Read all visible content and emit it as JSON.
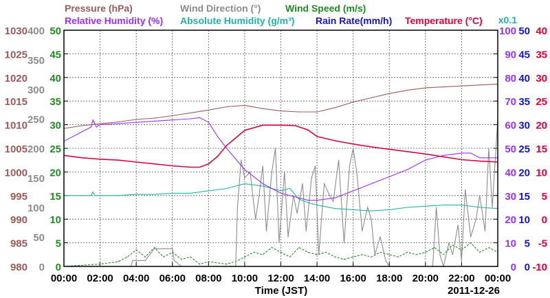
{
  "chart_data": {
    "type": "line",
    "titles": [
      {
        "text": "Pressure (hPa)",
        "color": "#9b5a5a",
        "row": 1
      },
      {
        "text": "Wind Direction (°)",
        "color": "#8c8c8c",
        "row": 1
      },
      {
        "text": "Wind Speed (m/s)",
        "color": "#1f8c1f",
        "row": 1
      },
      {
        "text": "Relative Humidity (%)",
        "color": "#9b30ff",
        "row": 2
      },
      {
        "text": "Absolute Humidity (g/m³)",
        "color": "#20b2aa",
        "row": 2
      },
      {
        "text": "Rain Rate(mm/h)",
        "color": "#1414c8",
        "row": 2
      },
      {
        "text": "Temperature (°C)",
        "color": "#e0003c",
        "row": 2
      }
    ],
    "note_x01": "x0.1",
    "xlabel": "Time (JST)",
    "date_label": "2011-12-26",
    "x_ticks": [
      "00:00",
      "02:00",
      "04:00",
      "06:00",
      "08:00",
      "10:00",
      "12:00",
      "14:00",
      "16:00",
      "18:00",
      "20:00",
      "22:00",
      "00:00"
    ],
    "x_range_hours": [
      0,
      24
    ],
    "grid": true,
    "axes": {
      "pressure": {
        "color": "#9b5a5a",
        "min": 980,
        "max": 1030,
        "ticks": [
          980,
          985,
          990,
          995,
          1000,
          1005,
          1010,
          1015,
          1020,
          1025,
          1030
        ],
        "side": "left"
      },
      "wind_direction": {
        "color": "#8c8c8c",
        "min": 0,
        "max": 400,
        "ticks": [
          0,
          50,
          100,
          150,
          200,
          250,
          300,
          350,
          400
        ],
        "side": "left"
      },
      "wind_speed": {
        "color": "#1f8c1f",
        "min": 0,
        "max": 50,
        "ticks": [
          0,
          5,
          10,
          15,
          20,
          25,
          30,
          35,
          40,
          45,
          50
        ],
        "side": "left"
      },
      "relative_humidity": {
        "color": "#9b30ff",
        "min": 0,
        "max": 100,
        "ticks": [
          0,
          10,
          20,
          30,
          40,
          50,
          60,
          70,
          80,
          90,
          100
        ],
        "side": "right"
      },
      "rain_rate": {
        "color": "#1414c8",
        "min": 0,
        "max": 50,
        "ticks": [
          0,
          5,
          10,
          15,
          20,
          25,
          30,
          35,
          40,
          45,
          50
        ],
        "side": "right"
      },
      "temperature": {
        "color": "#e0003c",
        "min": -10,
        "max": 40,
        "ticks": [
          -10,
          -5,
          0,
          5,
          10,
          15,
          20,
          25,
          30,
          35,
          40
        ],
        "side": "right"
      }
    },
    "series": [
      {
        "name": "Pressure (hPa)",
        "axis": "pressure",
        "color": "#9b5a5a",
        "x": [
          0,
          1,
          2,
          3,
          4,
          5,
          6,
          7,
          8,
          9,
          10,
          11,
          12,
          13,
          14,
          15,
          16,
          17,
          18,
          19,
          20,
          21,
          22,
          23,
          24
        ],
        "y": [
          1009.2,
          1009.8,
          1010.2,
          1010.6,
          1011.1,
          1011.4,
          1011.9,
          1012.5,
          1013.1,
          1013.8,
          1014.1,
          1013.4,
          1012.9,
          1012.7,
          1012.7,
          1013.6,
          1014.8,
          1015.7,
          1016.6,
          1017.3,
          1017.8,
          1018.0,
          1018.2,
          1018.4,
          1018.6
        ]
      },
      {
        "name": "Relative Humidity (%)",
        "axis": "relative_humidity",
        "color": "#9b30ff",
        "x": [
          0,
          0.5,
          1,
          1.5,
          1.6,
          1.8,
          2,
          3,
          4,
          5,
          6,
          7,
          7.5,
          8,
          8.5,
          9,
          10,
          11,
          12,
          13,
          13.5,
          14,
          15,
          16,
          17,
          18,
          19,
          20,
          21,
          22,
          22.5,
          23,
          24
        ],
        "y": [
          53,
          55,
          57,
          59,
          62,
          59,
          60,
          60.5,
          61,
          61.5,
          62,
          62.5,
          63,
          61,
          55,
          50,
          41,
          35,
          31,
          29,
          28,
          28,
          29,
          32,
          35,
          38,
          41,
          45,
          47,
          48,
          48,
          46,
          46
        ]
      },
      {
        "name": "Absolute Humidity (g/m³)",
        "axis": "relative_humidity",
        "color": "#20b2aa",
        "x": [
          0,
          1,
          1.5,
          1.6,
          1.7,
          2,
          3,
          4,
          5,
          6,
          7,
          8,
          9,
          10,
          11,
          12,
          12.5,
          13,
          13.5,
          14,
          15,
          16,
          17,
          18,
          19,
          20,
          21,
          22,
          23,
          24
        ],
        "y": [
          30,
          30,
          30,
          31.5,
          30,
          30,
          30,
          30.5,
          30.5,
          31,
          31,
          32,
          33,
          35,
          34,
          32,
          33,
          28.5,
          27,
          26,
          24.5,
          24,
          23.5,
          24,
          25,
          25.5,
          26,
          26,
          25,
          24.5
        ]
      },
      {
        "name": "Temperature (°C)",
        "axis": "temperature",
        "color": "#e0003c",
        "x": [
          0,
          1,
          2,
          3,
          4,
          5,
          6,
          7,
          7.5,
          8,
          8.5,
          9,
          10,
          11,
          12,
          12.8,
          13.5,
          14,
          15,
          16,
          17,
          18,
          19,
          20,
          21,
          22,
          23,
          24
        ],
        "y": [
          13.5,
          13.0,
          12.7,
          12.5,
          12.1,
          11.7,
          11.3,
          11.0,
          11.0,
          11.7,
          13.3,
          15.6,
          18.8,
          19.9,
          19.9,
          19.8,
          18.9,
          17.5,
          16.6,
          15.9,
          15.3,
          14.8,
          14.3,
          13.8,
          13.2,
          12.6,
          12.3,
          12.1
        ]
      },
      {
        "name": "Wind Direction (°)",
        "axis": "wind_direction",
        "color": "#8c8c8c",
        "x": [
          0,
          3.7,
          3.8,
          4.5,
          5,
          5.5,
          6,
          6.1,
          6.5,
          9.5,
          9.6,
          9.8,
          10,
          10.3,
          10.6,
          10.8,
          11,
          11.2,
          11.5,
          11.7,
          11.9,
          12.2,
          12.4,
          12.7,
          12.9,
          13.2,
          13.4,
          13.7,
          13.9,
          14.1,
          14.4,
          14.7,
          14.9,
          15.2,
          15.5,
          15.8,
          16.0,
          16.2,
          16.5,
          16.8,
          17.0,
          17.2,
          17.5,
          17.8,
          18.0,
          20.4,
          20.6,
          20.8,
          21.0,
          21.3,
          21.5,
          21.8,
          22.0,
          22.2,
          22.5,
          22.8,
          23.0,
          23.3,
          23.5,
          23.7,
          24
        ],
        "y": [
          0,
          0,
          10,
          10,
          30,
          30,
          30,
          10,
          0,
          0,
          100,
          180,
          150,
          160,
          80,
          120,
          170,
          60,
          160,
          200,
          40,
          160,
          50,
          120,
          90,
          140,
          60,
          150,
          170,
          20,
          140,
          120,
          110,
          180,
          40,
          170,
          200,
          160,
          60,
          100,
          80,
          20,
          50,
          10,
          0,
          0,
          100,
          20,
          0,
          40,
          20,
          70,
          10,
          130,
          50,
          80,
          120,
          60,
          200,
          100,
          250
        ]
      },
      {
        "name": "Wind Speed (m/s)",
        "axis": "wind_speed",
        "color": "#1f8c1f",
        "x": [
          0,
          2,
          3,
          3.5,
          4,
          4.5,
          5,
          5.5,
          6,
          6.5,
          7,
          7.5,
          8,
          9,
          9.5,
          10,
          10.5,
          11,
          11.5,
          12,
          12.5,
          13,
          13.5,
          14,
          14.5,
          15,
          15.5,
          16,
          16.5,
          17,
          17.5,
          18,
          18.5,
          19,
          19.5,
          20,
          20.5,
          21,
          21.5,
          22,
          22.5,
          23,
          23.5,
          24
        ],
        "y": [
          0,
          0.5,
          1,
          2,
          3.5,
          2,
          4,
          2,
          3,
          1.5,
          2,
          0.5,
          1,
          0.5,
          1,
          2,
          3,
          2.5,
          4,
          3,
          2,
          4,
          3,
          2.5,
          3,
          2,
          1.5,
          2,
          2.5,
          2,
          3,
          2.5,
          2,
          3,
          2.5,
          3,
          4,
          2.5,
          4.5,
          3.5,
          5,
          3,
          4,
          3
        ]
      },
      {
        "name": "Rain Rate(mm/h)",
        "axis": "rain_rate",
        "color": "#1414c8",
        "x": [
          0,
          24
        ],
        "y": [
          0,
          0
        ]
      }
    ]
  }
}
